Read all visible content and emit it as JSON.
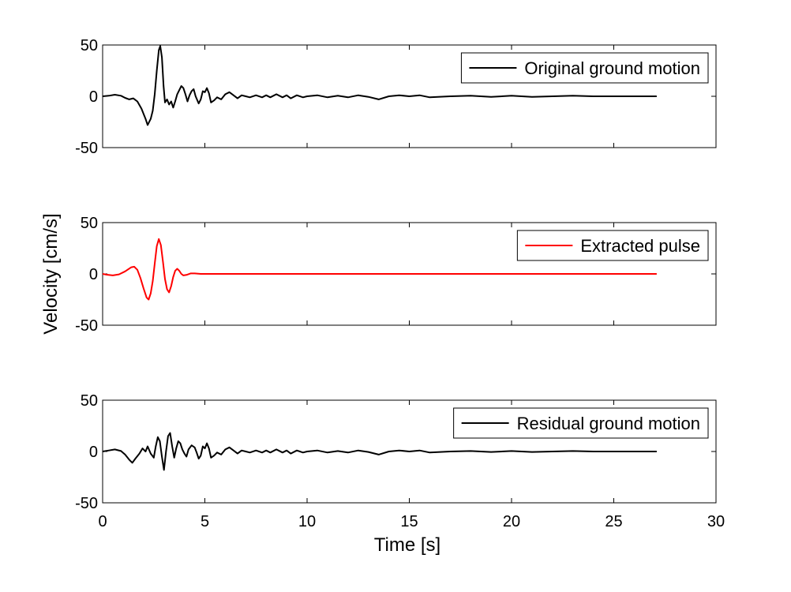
{
  "figure": {
    "shared_ylabel": "Velocity [cm/s]",
    "shared_xlabel": "Time [s]"
  },
  "chart_data": [
    {
      "type": "line",
      "title": "",
      "xlabel": "",
      "ylabel": "",
      "xlim": [
        0,
        30
      ],
      "ylim": [
        -50,
        50
      ],
      "xticks": [
        0,
        5,
        10,
        15,
        20,
        25,
        30
      ],
      "xtick_labels_visible": false,
      "yticks": [
        -50,
        0,
        50
      ],
      "ytick_labels": [
        "-50",
        "0",
        "50"
      ],
      "grid": false,
      "legend_position": "top-right",
      "series": [
        {
          "name": "Original ground motion",
          "color": "#000000",
          "points": [
            [
              0,
              0
            ],
            [
              0.3,
              0.5
            ],
            [
              0.6,
              1.5
            ],
            [
              0.9,
              0.5
            ],
            [
              1.1,
              -1.5
            ],
            [
              1.3,
              -3
            ],
            [
              1.5,
              -2
            ],
            [
              1.7,
              -5
            ],
            [
              1.9,
              -12
            ],
            [
              2.1,
              -22
            ],
            [
              2.2,
              -28
            ],
            [
              2.35,
              -22
            ],
            [
              2.45,
              -14
            ],
            [
              2.55,
              2
            ],
            [
              2.65,
              25
            ],
            [
              2.75,
              45
            ],
            [
              2.82,
              49
            ],
            [
              2.9,
              38
            ],
            [
              2.98,
              10
            ],
            [
              3.05,
              -6
            ],
            [
              3.15,
              -3
            ],
            [
              3.25,
              -8
            ],
            [
              3.35,
              -5
            ],
            [
              3.45,
              -11
            ],
            [
              3.55,
              -5
            ],
            [
              3.65,
              2
            ],
            [
              3.75,
              6
            ],
            [
              3.85,
              10
            ],
            [
              3.95,
              8
            ],
            [
              4.05,
              2
            ],
            [
              4.15,
              -5
            ],
            [
              4.25,
              1
            ],
            [
              4.35,
              5
            ],
            [
              4.45,
              7
            ],
            [
              4.55,
              0
            ],
            [
              4.7,
              -7
            ],
            [
              4.8,
              -3
            ],
            [
              4.9,
              5
            ],
            [
              5.0,
              4
            ],
            [
              5.1,
              8
            ],
            [
              5.2,
              3
            ],
            [
              5.3,
              -6
            ],
            [
              5.45,
              -4
            ],
            [
              5.6,
              -1
            ],
            [
              5.8,
              -3
            ],
            [
              6.0,
              2
            ],
            [
              6.2,
              4
            ],
            [
              6.4,
              1
            ],
            [
              6.6,
              -2
            ],
            [
              6.8,
              1
            ],
            [
              7.0,
              0
            ],
            [
              7.2,
              -1
            ],
            [
              7.5,
              1
            ],
            [
              7.8,
              -1
            ],
            [
              8.0,
              1
            ],
            [
              8.2,
              -1
            ],
            [
              8.5,
              2
            ],
            [
              8.8,
              -1
            ],
            [
              9.0,
              1
            ],
            [
              9.2,
              -2
            ],
            [
              9.5,
              1
            ],
            [
              9.8,
              -1
            ],
            [
              10.0,
              0
            ],
            [
              10.5,
              1
            ],
            [
              11.0,
              -1
            ],
            [
              11.5,
              0.5
            ],
            [
              12.0,
              -1
            ],
            [
              12.5,
              1
            ],
            [
              13.0,
              -0.5
            ],
            [
              13.5,
              -3
            ],
            [
              14.0,
              0
            ],
            [
              14.5,
              1
            ],
            [
              15.0,
              0
            ],
            [
              15.5,
              1
            ],
            [
              16.0,
              -1
            ],
            [
              17.0,
              0
            ],
            [
              18.0,
              0.5
            ],
            [
              19.0,
              -0.5
            ],
            [
              20.0,
              0.5
            ],
            [
              21.0,
              -0.5
            ],
            [
              22.0,
              0
            ],
            [
              23.0,
              0.5
            ],
            [
              24.0,
              0
            ],
            [
              25.0,
              0
            ],
            [
              26.0,
              0
            ],
            [
              27.1,
              0
            ]
          ]
        }
      ]
    },
    {
      "type": "line",
      "title": "",
      "xlabel": "",
      "ylabel": "",
      "xlim": [
        0,
        30
      ],
      "ylim": [
        -50,
        50
      ],
      "xticks": [
        0,
        5,
        10,
        15,
        20,
        25,
        30
      ],
      "xtick_labels_visible": false,
      "yticks": [
        -50,
        0,
        50
      ],
      "ytick_labels": [
        "-50",
        "0",
        "50"
      ],
      "grid": false,
      "legend_position": "top-right",
      "series": [
        {
          "name": "Extracted pulse",
          "color": "#ff0000",
          "points": [
            [
              0,
              0
            ],
            [
              0.2,
              -0.8
            ],
            [
              0.5,
              -1.5
            ],
            [
              0.8,
              -0.5
            ],
            [
              1.1,
              2.5
            ],
            [
              1.4,
              6.5
            ],
            [
              1.55,
              7
            ],
            [
              1.7,
              4
            ],
            [
              1.85,
              -4
            ],
            [
              2.0,
              -14
            ],
            [
              2.15,
              -23
            ],
            [
              2.25,
              -25
            ],
            [
              2.35,
              -19
            ],
            [
              2.45,
              -7
            ],
            [
              2.55,
              10
            ],
            [
              2.65,
              27
            ],
            [
              2.75,
              34
            ],
            [
              2.85,
              28
            ],
            [
              2.95,
              12
            ],
            [
              3.05,
              -5
            ],
            [
              3.15,
              -15
            ],
            [
              3.25,
              -18
            ],
            [
              3.35,
              -12
            ],
            [
              3.45,
              -3
            ],
            [
              3.55,
              3
            ],
            [
              3.65,
              5
            ],
            [
              3.75,
              3
            ],
            [
              3.85,
              0
            ],
            [
              3.95,
              -1.5
            ],
            [
              4.1,
              -1
            ],
            [
              4.3,
              0.5
            ],
            [
              4.5,
              0.5
            ],
            [
              4.8,
              0
            ],
            [
              5.2,
              0
            ],
            [
              6.0,
              0
            ],
            [
              10.0,
              0
            ],
            [
              15.0,
              0
            ],
            [
              20.0,
              0
            ],
            [
              25.0,
              0
            ],
            [
              27.1,
              0
            ]
          ]
        }
      ]
    },
    {
      "type": "line",
      "title": "",
      "xlabel": "Time [s]",
      "ylabel": "",
      "xlim": [
        0,
        30
      ],
      "ylim": [
        -50,
        50
      ],
      "xticks": [
        0,
        5,
        10,
        15,
        20,
        25,
        30
      ],
      "xtick_labels": [
        "0",
        "5",
        "10",
        "15",
        "20",
        "25",
        "30"
      ],
      "xtick_labels_visible": true,
      "yticks": [
        -50,
        0,
        50
      ],
      "ytick_labels": [
        "-50",
        "0",
        "50"
      ],
      "grid": false,
      "legend_position": "top-right",
      "series": [
        {
          "name": "Residual ground motion",
          "color": "#000000",
          "points": [
            [
              0,
              0
            ],
            [
              0.3,
              1
            ],
            [
              0.6,
              2
            ],
            [
              0.9,
              0.5
            ],
            [
              1.1,
              -3
            ],
            [
              1.3,
              -8
            ],
            [
              1.45,
              -11
            ],
            [
              1.6,
              -7
            ],
            [
              1.8,
              -2
            ],
            [
              1.95,
              3
            ],
            [
              2.1,
              0
            ],
            [
              2.2,
              5
            ],
            [
              2.35,
              -2
            ],
            [
              2.5,
              -6
            ],
            [
              2.6,
              5
            ],
            [
              2.7,
              14
            ],
            [
              2.8,
              10
            ],
            [
              2.9,
              -5
            ],
            [
              3.0,
              -18
            ],
            [
              3.1,
              0
            ],
            [
              3.2,
              15
            ],
            [
              3.3,
              18
            ],
            [
              3.4,
              5
            ],
            [
              3.5,
              -6
            ],
            [
              3.6,
              3
            ],
            [
              3.7,
              10
            ],
            [
              3.8,
              8
            ],
            [
              3.9,
              2
            ],
            [
              4.0,
              -2
            ],
            [
              4.1,
              -5
            ],
            [
              4.2,
              2
            ],
            [
              4.35,
              6
            ],
            [
              4.5,
              4
            ],
            [
              4.6,
              -1
            ],
            [
              4.7,
              -7
            ],
            [
              4.8,
              -4
            ],
            [
              4.9,
              5
            ],
            [
              5.0,
              3
            ],
            [
              5.1,
              8
            ],
            [
              5.2,
              3
            ],
            [
              5.3,
              -6
            ],
            [
              5.45,
              -4
            ],
            [
              5.6,
              -1
            ],
            [
              5.8,
              -3
            ],
            [
              6.0,
              2
            ],
            [
              6.2,
              4
            ],
            [
              6.4,
              1
            ],
            [
              6.6,
              -2
            ],
            [
              6.8,
              1
            ],
            [
              7.0,
              0
            ],
            [
              7.2,
              -1
            ],
            [
              7.5,
              1
            ],
            [
              7.8,
              -1
            ],
            [
              8.0,
              1
            ],
            [
              8.2,
              -1
            ],
            [
              8.5,
              2
            ],
            [
              8.8,
              -1
            ],
            [
              9.0,
              1
            ],
            [
              9.2,
              -2
            ],
            [
              9.5,
              1
            ],
            [
              9.8,
              -1
            ],
            [
              10.0,
              0
            ],
            [
              10.5,
              1
            ],
            [
              11.0,
              -1
            ],
            [
              11.5,
              0.5
            ],
            [
              12.0,
              -1
            ],
            [
              12.5,
              1
            ],
            [
              13.0,
              -0.5
            ],
            [
              13.5,
              -3
            ],
            [
              14.0,
              0
            ],
            [
              14.5,
              1
            ],
            [
              15.0,
              0
            ],
            [
              15.5,
              1
            ],
            [
              16.0,
              -1
            ],
            [
              17.0,
              0
            ],
            [
              18.0,
              0.5
            ],
            [
              19.0,
              -0.5
            ],
            [
              20.0,
              0.5
            ],
            [
              21.0,
              -0.5
            ],
            [
              22.0,
              0
            ],
            [
              23.0,
              0.5
            ],
            [
              24.0,
              0
            ],
            [
              25.0,
              0
            ],
            [
              26.0,
              0
            ],
            [
              27.1,
              0
            ]
          ]
        }
      ]
    }
  ]
}
